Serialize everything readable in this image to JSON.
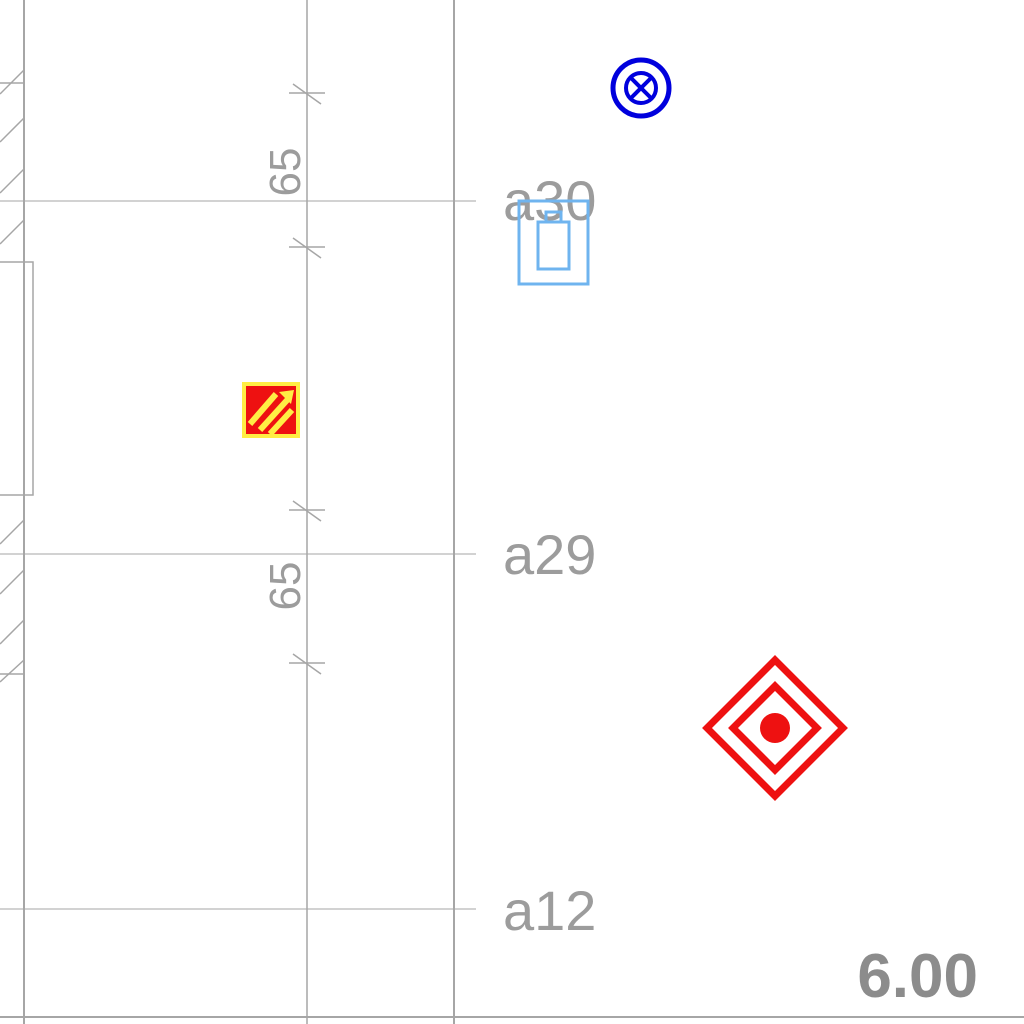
{
  "grid_labels": {
    "a30": "a30",
    "a29": "a29",
    "a12": "a12"
  },
  "dimensions": {
    "upper": "65",
    "lower": "65"
  },
  "elevation_label": "6.00",
  "colors": {
    "line": "#a6a6a6",
    "label": "#9c9c9c",
    "elevation": "#8c8c8c",
    "blue_symbol": "#0000dd",
    "light_blue_symbol": "#6fb4ef",
    "red_symbol": "#ee1111",
    "yellow_symbol": "#ffee44"
  },
  "icons": {
    "top_symbol": "circle-cross-icon",
    "bottle_symbol": "extinguisher-box-icon",
    "hatched_symbol": "hatched-square-icon",
    "diamond_symbol": "diamond-target-icon"
  }
}
